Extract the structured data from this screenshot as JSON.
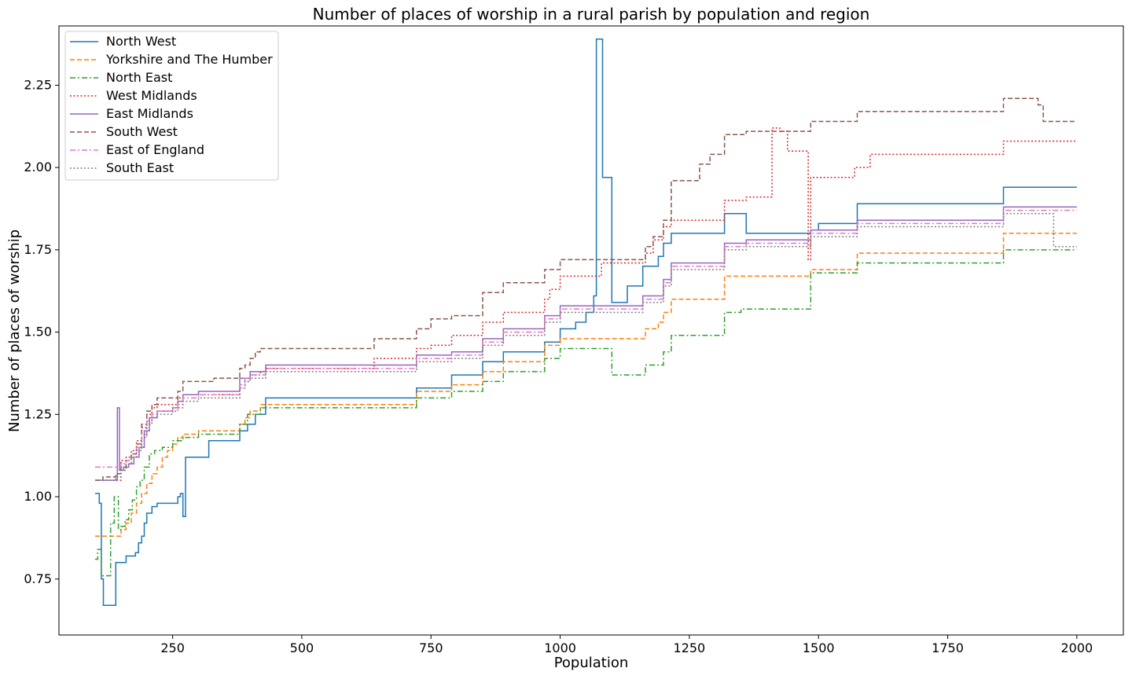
{
  "chart_data": {
    "type": "line",
    "title": "Number of places of worship in a rural parish by population and region",
    "xlabel": "Population",
    "ylabel": "Number of places of worship",
    "xlim": [
      30,
      2090
    ],
    "ylim": [
      0.58,
      2.43
    ],
    "xticks": [
      250,
      500,
      750,
      1000,
      1250,
      1500,
      1750,
      2000
    ],
    "xtick_labels": [
      "250",
      "500",
      "750",
      "1000",
      "1250",
      "1500",
      "1750",
      "2000"
    ],
    "yticks": [
      0.75,
      1.0,
      1.25,
      1.5,
      1.75,
      2.0,
      2.25
    ],
    "ytick_labels": [
      "0.75",
      "1.00",
      "1.25",
      "1.50",
      "1.75",
      "2.00",
      "2.25"
    ],
    "grid": false,
    "legend_position": "top-left",
    "series": [
      {
        "name": "North West",
        "color": "#1f77b4",
        "dash": "solid",
        "x": [
          100,
          108,
          112,
          116,
          120,
          125,
          130,
          140,
          148,
          160,
          170,
          178,
          184,
          190,
          195,
          200,
          210,
          220,
          240,
          260,
          265,
          270,
          275,
          300,
          320,
          360,
          380,
          395,
          410,
          430,
          500,
          600,
          700,
          722,
          750,
          790,
          850,
          890,
          950,
          970,
          1000,
          1030,
          1050,
          1065,
          1070,
          1082,
          1095,
          1100,
          1130,
          1160,
          1190,
          1200,
          1215,
          1250,
          1300,
          1318,
          1360,
          1400,
          1450,
          1485,
          1500,
          1550,
          1570,
          1575,
          1600,
          1700,
          1800,
          1858,
          1900,
          2000
        ],
        "y": [
          1.01,
          0.98,
          0.75,
          0.67,
          0.67,
          0.67,
          0.67,
          0.8,
          0.8,
          0.82,
          0.82,
          0.83,
          0.86,
          0.88,
          0.92,
          0.95,
          0.97,
          0.98,
          0.98,
          1.0,
          1.01,
          0.94,
          1.12,
          1.12,
          1.17,
          1.17,
          1.2,
          1.22,
          1.25,
          1.3,
          1.3,
          1.3,
          1.3,
          1.33,
          1.33,
          1.37,
          1.41,
          1.44,
          1.44,
          1.47,
          1.51,
          1.53,
          1.56,
          1.61,
          2.39,
          1.97,
          1.97,
          1.59,
          1.64,
          1.7,
          1.73,
          1.77,
          1.8,
          1.8,
          1.8,
          1.86,
          1.8,
          1.8,
          1.8,
          1.81,
          1.83,
          1.83,
          1.83,
          1.89,
          1.89,
          1.89,
          1.89,
          1.94,
          1.94,
          1.94
        ]
      },
      {
        "name": "Yorkshire and The Humber",
        "color": "#ff7f0e",
        "dash": "dashed",
        "x": [
          100,
          140,
          150,
          160,
          170,
          180,
          190,
          200,
          210,
          220,
          230,
          240,
          250,
          260,
          270,
          300,
          330,
          380,
          390,
          400,
          420,
          500,
          600,
          722,
          740,
          790,
          850,
          890,
          950,
          970,
          1000,
          1050,
          1100,
          1140,
          1165,
          1190,
          1200,
          1215,
          1250,
          1318,
          1400,
          1485,
          1500,
          1575,
          1700,
          1858,
          1900,
          2000
        ],
        "y": [
          0.88,
          0.88,
          0.9,
          0.92,
          0.95,
          0.98,
          1.01,
          1.04,
          1.07,
          1.09,
          1.12,
          1.14,
          1.16,
          1.18,
          1.19,
          1.2,
          1.2,
          1.22,
          1.24,
          1.26,
          1.28,
          1.28,
          1.28,
          1.32,
          1.32,
          1.34,
          1.38,
          1.41,
          1.41,
          1.46,
          1.48,
          1.48,
          1.48,
          1.48,
          1.51,
          1.53,
          1.56,
          1.6,
          1.6,
          1.67,
          1.67,
          1.69,
          1.69,
          1.74,
          1.74,
          1.8,
          1.8,
          1.8
        ]
      },
      {
        "name": "North East",
        "color": "#2ca02c",
        "dash": "dashdot",
        "x": [
          100,
          105,
          112,
          120,
          130,
          137,
          145,
          150,
          158,
          165,
          172,
          180,
          187,
          195,
          205,
          215,
          230,
          250,
          270,
          300,
          330,
          380,
          395,
          420,
          500,
          600,
          722,
          790,
          850,
          890,
          950,
          970,
          1000,
          1050,
          1080,
          1100,
          1150,
          1165,
          1200,
          1215,
          1250,
          1318,
          1350,
          1400,
          1485,
          1500,
          1575,
          1700,
          1858,
          1900,
          2000
        ],
        "y": [
          0.81,
          0.84,
          0.76,
          0.76,
          0.92,
          1.0,
          0.9,
          0.91,
          0.93,
          0.96,
          0.99,
          1.03,
          1.05,
          1.09,
          1.13,
          1.14,
          1.15,
          1.17,
          1.18,
          1.19,
          1.19,
          1.22,
          1.25,
          1.27,
          1.27,
          1.27,
          1.3,
          1.32,
          1.35,
          1.38,
          1.38,
          1.42,
          1.45,
          1.45,
          1.45,
          1.37,
          1.37,
          1.4,
          1.44,
          1.49,
          1.49,
          1.56,
          1.57,
          1.57,
          1.68,
          1.68,
          1.71,
          1.71,
          1.75,
          1.75,
          1.75
        ]
      },
      {
        "name": "West Midlands",
        "color": "#d62728",
        "dash": "dotted",
        "x": [
          100,
          140,
          150,
          160,
          170,
          180,
          190,
          200,
          210,
          220,
          240,
          260,
          270,
          300,
          330,
          380,
          390,
          400,
          420,
          430,
          500,
          600,
          640,
          722,
          750,
          790,
          850,
          890,
          950,
          970,
          980,
          1000,
          1050,
          1080,
          1100,
          1150,
          1165,
          1180,
          1200,
          1215,
          1250,
          1300,
          1318,
          1360,
          1410,
          1425,
          1440,
          1480,
          1485,
          1500,
          1570,
          1600,
          1700,
          1800,
          1858,
          1900,
          2000
        ],
        "y": [
          1.05,
          1.05,
          1.11,
          1.12,
          1.14,
          1.17,
          1.21,
          1.25,
          1.27,
          1.28,
          1.28,
          1.3,
          1.31,
          1.31,
          1.31,
          1.33,
          1.35,
          1.37,
          1.38,
          1.39,
          1.39,
          1.39,
          1.42,
          1.45,
          1.46,
          1.49,
          1.53,
          1.56,
          1.56,
          1.6,
          1.63,
          1.67,
          1.67,
          1.71,
          1.71,
          1.71,
          1.74,
          1.78,
          1.82,
          1.84,
          1.84,
          1.84,
          1.9,
          1.91,
          2.12,
          2.11,
          2.05,
          1.72,
          1.97,
          1.97,
          2.0,
          2.04,
          2.04,
          2.04,
          2.08,
          2.08,
          2.08
        ]
      },
      {
        "name": "East Midlands",
        "color": "#9467bd",
        "dash": "solid",
        "x": [
          100,
          140,
          143,
          147,
          155,
          165,
          175,
          185,
          195,
          205,
          220,
          250,
          260,
          270,
          300,
          330,
          380,
          400,
          430,
          500,
          600,
          722,
          750,
          790,
          850,
          890,
          950,
          970,
          1000,
          1050,
          1100,
          1160,
          1200,
          1215,
          1250,
          1318,
          1360,
          1400,
          1485,
          1500,
          1575,
          1700,
          1858,
          1900,
          2000
        ],
        "y": [
          1.05,
          1.05,
          1.27,
          1.08,
          1.09,
          1.1,
          1.12,
          1.15,
          1.2,
          1.24,
          1.26,
          1.27,
          1.29,
          1.31,
          1.32,
          1.32,
          1.36,
          1.38,
          1.4,
          1.4,
          1.4,
          1.43,
          1.43,
          1.44,
          1.48,
          1.51,
          1.51,
          1.55,
          1.58,
          1.58,
          1.58,
          1.61,
          1.66,
          1.71,
          1.71,
          1.77,
          1.78,
          1.78,
          1.81,
          1.81,
          1.84,
          1.84,
          1.88,
          1.88,
          1.88
        ]
      },
      {
        "name": "South West",
        "color": "#8c564b",
        "dash": "dashed",
        "x": [
          100,
          115,
          140,
          150,
          160,
          170,
          180,
          190,
          200,
          210,
          220,
          240,
          260,
          270,
          300,
          330,
          380,
          390,
          400,
          410,
          420,
          430,
          500,
          600,
          640,
          722,
          750,
          790,
          850,
          890,
          950,
          970,
          1000,
          1050,
          1100,
          1150,
          1165,
          1180,
          1200,
          1215,
          1250,
          1270,
          1290,
          1318,
          1360,
          1400,
          1485,
          1500,
          1575,
          1700,
          1858,
          1890,
          1925,
          1935,
          2000
        ],
        "y": [
          1.05,
          1.06,
          1.07,
          1.09,
          1.11,
          1.13,
          1.16,
          1.22,
          1.26,
          1.28,
          1.3,
          1.3,
          1.32,
          1.35,
          1.35,
          1.36,
          1.39,
          1.4,
          1.42,
          1.44,
          1.45,
          1.45,
          1.45,
          1.45,
          1.48,
          1.51,
          1.54,
          1.55,
          1.62,
          1.65,
          1.65,
          1.69,
          1.72,
          1.72,
          1.72,
          1.72,
          1.76,
          1.79,
          1.84,
          1.96,
          1.96,
          2.01,
          2.04,
          2.1,
          2.11,
          2.11,
          2.14,
          2.14,
          2.17,
          2.17,
          2.21,
          2.21,
          2.19,
          2.14,
          2.14
        ]
      },
      {
        "name": "East of England",
        "color": "#e377c2",
        "dash": "dashdot",
        "x": [
          100,
          140,
          150,
          160,
          170,
          180,
          190,
          200,
          210,
          220,
          250,
          260,
          270,
          300,
          330,
          380,
          390,
          400,
          430,
          500,
          600,
          722,
          750,
          790,
          850,
          890,
          950,
          970,
          1000,
          1050,
          1100,
          1160,
          1200,
          1215,
          1250,
          1318,
          1360,
          1400,
          1485,
          1500,
          1575,
          1700,
          1858,
          1900,
          2000
        ],
        "y": [
          1.09,
          1.09,
          1.1,
          1.11,
          1.12,
          1.15,
          1.19,
          1.23,
          1.25,
          1.26,
          1.27,
          1.28,
          1.3,
          1.31,
          1.31,
          1.34,
          1.36,
          1.37,
          1.39,
          1.39,
          1.39,
          1.42,
          1.42,
          1.43,
          1.47,
          1.5,
          1.5,
          1.54,
          1.57,
          1.57,
          1.57,
          1.6,
          1.65,
          1.7,
          1.7,
          1.76,
          1.77,
          1.77,
          1.8,
          1.8,
          1.83,
          1.83,
          1.87,
          1.87,
          1.87
        ]
      },
      {
        "name": "South East",
        "color": "#7f7f7f",
        "dash": "dotted",
        "x": [
          100,
          140,
          150,
          160,
          170,
          180,
          190,
          200,
          210,
          220,
          250,
          260,
          270,
          300,
          330,
          380,
          390,
          400,
          430,
          500,
          600,
          722,
          750,
          790,
          850,
          890,
          950,
          970,
          1000,
          1050,
          1100,
          1160,
          1200,
          1215,
          1250,
          1318,
          1360,
          1400,
          1485,
          1500,
          1575,
          1700,
          1858,
          1900,
          1955,
          2000
        ],
        "y": [
          1.05,
          1.06,
          1.08,
          1.1,
          1.12,
          1.14,
          1.18,
          1.22,
          1.24,
          1.25,
          1.26,
          1.27,
          1.29,
          1.3,
          1.3,
          1.33,
          1.35,
          1.36,
          1.38,
          1.38,
          1.38,
          1.41,
          1.41,
          1.42,
          1.46,
          1.49,
          1.49,
          1.53,
          1.56,
          1.56,
          1.56,
          1.59,
          1.64,
          1.69,
          1.69,
          1.75,
          1.76,
          1.76,
          1.79,
          1.79,
          1.82,
          1.82,
          1.86,
          1.86,
          1.76,
          1.76
        ]
      }
    ]
  }
}
